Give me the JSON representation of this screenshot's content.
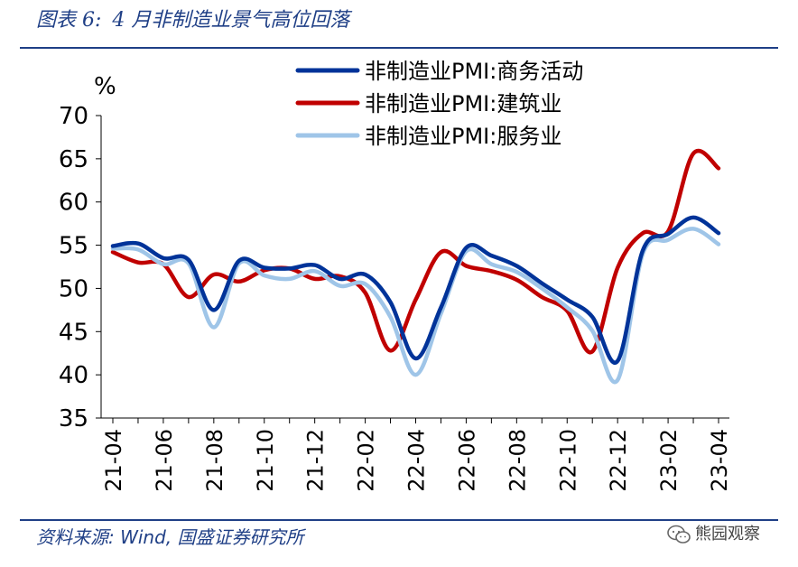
{
  "header": {
    "figure_label": "图表 6:",
    "title": "4 月非制造业景气高位回落"
  },
  "footer": {
    "source": "资料来源: Wind, 国盛证券研究所",
    "watermark": "熊园观察",
    "watermark_icon": "wechat-icon"
  },
  "colors": {
    "brand_blue": "#1f3f86",
    "business": "#003399",
    "construction": "#c00000",
    "services": "#9fc5e8"
  },
  "chart_data": {
    "type": "line",
    "ylabel": "%",
    "ylim": [
      35,
      70
    ],
    "yticks": [
      35,
      40,
      45,
      50,
      55,
      60,
      65,
      70
    ],
    "x": [
      "21-04",
      "21-05",
      "21-06",
      "21-07",
      "21-08",
      "21-09",
      "21-10",
      "21-11",
      "21-12",
      "22-01",
      "22-02",
      "22-03",
      "22-04",
      "22-05",
      "22-06",
      "22-07",
      "22-08",
      "22-09",
      "22-10",
      "22-11",
      "22-12",
      "23-01",
      "23-02",
      "23-03",
      "23-04"
    ],
    "xtick_labels": [
      "21-04",
      "21-06",
      "21-08",
      "21-10",
      "21-12",
      "22-02",
      "22-04",
      "22-06",
      "22-08",
      "22-10",
      "22-12",
      "23-02",
      "23-04"
    ],
    "legend_position": "top-right",
    "series": [
      {
        "name": "非制造业PMI:商务活动",
        "color": "#003399",
        "values": [
          54.9,
          55.2,
          53.5,
          53.3,
          47.5,
          53.2,
          52.4,
          52.3,
          52.7,
          51.1,
          51.6,
          48.4,
          41.9,
          47.8,
          54.7,
          53.8,
          52.6,
          50.6,
          48.7,
          46.7,
          41.6,
          54.4,
          56.3,
          58.2,
          56.4
        ]
      },
      {
        "name": "非制造业PMI:建筑业",
        "color": "#c00000",
        "values": [
          54.2,
          53.0,
          52.8,
          49.0,
          51.6,
          50.8,
          52.1,
          52.3,
          51.1,
          51.4,
          49.5,
          42.8,
          48.7,
          54.2,
          52.6,
          52.0,
          51.0,
          49.0,
          47.4,
          42.7,
          52.4,
          56.4,
          56.6,
          65.6,
          63.9
        ]
      },
      {
        "name": "非制造业PMI:服务业",
        "color": "#9fc5e8",
        "values": [
          54.6,
          54.5,
          52.8,
          52.9,
          45.5,
          52.9,
          51.5,
          51.1,
          52.0,
          50.3,
          50.5,
          46.7,
          40.0,
          47.1,
          54.3,
          52.8,
          51.9,
          50.0,
          47.8,
          45.1,
          39.4,
          54.0,
          55.6,
          56.9,
          55.1
        ]
      }
    ]
  }
}
